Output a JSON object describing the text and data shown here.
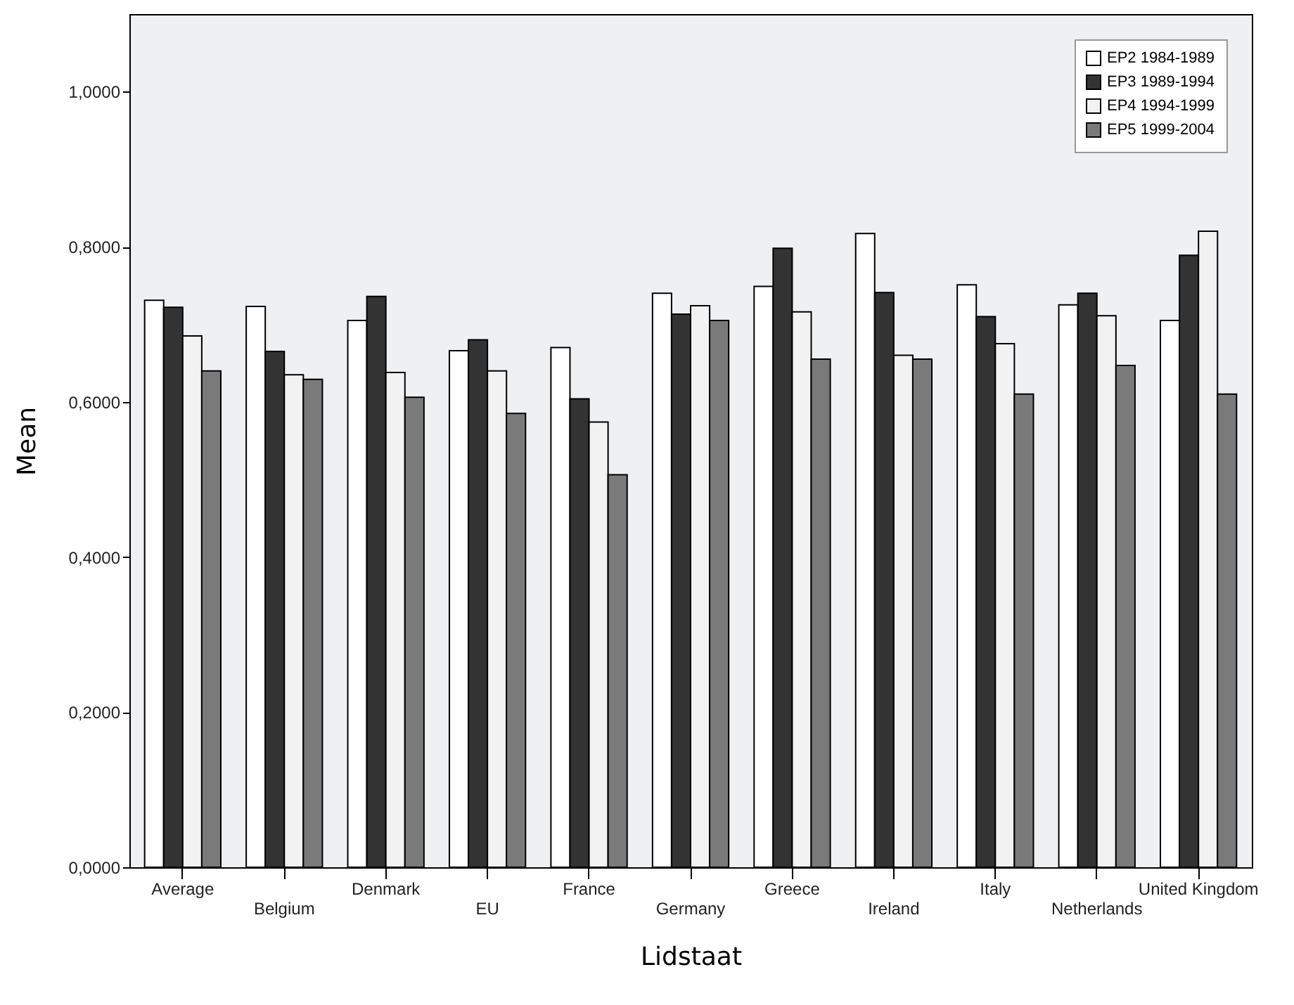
{
  "chart_data": {
    "type": "bar",
    "xlabel": "Lidstaat",
    "ylabel": "Mean",
    "categories": [
      "Average",
      "Belgium",
      "Denmark",
      "EU",
      "France",
      "Germany",
      "Greece",
      "Ireland",
      "Italy",
      "Netherlands",
      "United Kingdom"
    ],
    "series": [
      {
        "name": "EP2 1984-1989",
        "color": "#ffffff",
        "values": [
          0.731,
          0.723,
          0.705,
          0.666,
          0.67,
          0.74,
          0.749,
          0.817,
          0.751,
          0.725,
          0.705
        ]
      },
      {
        "name": "EP3 1989-1994",
        "color": "#333333",
        "values": [
          0.722,
          0.665,
          0.736,
          0.68,
          0.604,
          0.713,
          0.798,
          0.741,
          0.71,
          0.74,
          0.789
        ]
      },
      {
        "name": "EP4 1994-1999",
        "color": "#f2f2f2",
        "values": [
          0.685,
          0.635,
          0.638,
          0.64,
          0.574,
          0.724,
          0.716,
          0.66,
          0.675,
          0.711,
          0.82
        ]
      },
      {
        "name": "EP5 1999-2004",
        "color": "#7a7a7a",
        "values": [
          0.64,
          0.629,
          0.606,
          0.585,
          0.506,
          0.705,
          0.655,
          0.655,
          0.61,
          0.647,
          0.61
        ]
      }
    ],
    "ylim": [
      0,
      1.1
    ],
    "yticks": [
      {
        "value": 0,
        "label": "0,0000"
      },
      {
        "value": 0.2,
        "label": "0,2000"
      },
      {
        "value": 0.4,
        "label": "0,4000"
      },
      {
        "value": 0.6,
        "label": "0,6000"
      },
      {
        "value": 0.8,
        "label": "0,8000"
      },
      {
        "value": 1.0,
        "label": "1,0000"
      }
    ],
    "grid": false,
    "legend": "top right"
  }
}
